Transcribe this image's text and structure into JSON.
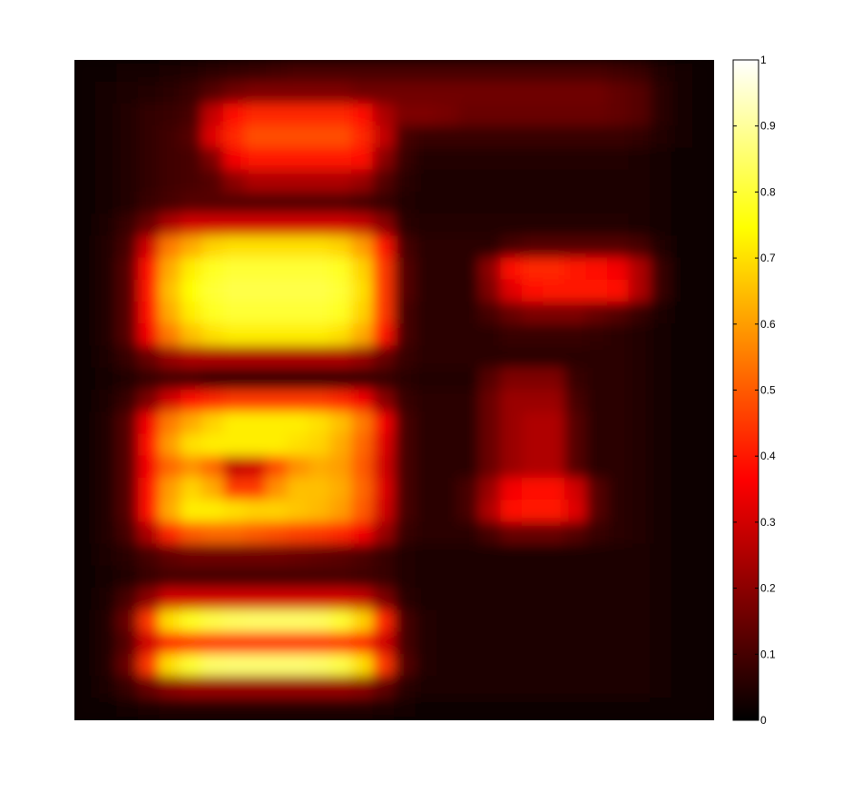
{
  "chart_data": {
    "type": "heatmap",
    "colormap": "hot",
    "clim": [
      0,
      1
    ],
    "grid": false,
    "title": "",
    "xlabel": "",
    "ylabel": "",
    "colorbar": {
      "placement": "right",
      "range": [
        0,
        1
      ],
      "ticks": [
        0,
        0.1,
        0.2,
        0.3,
        0.4,
        0.5,
        0.6,
        0.7,
        0.8,
        0.9,
        1
      ],
      "tick_labels": [
        "0",
        "0.1",
        "0.2",
        "0.3",
        "0.4",
        "0.5",
        "0.6",
        "0.7",
        "0.8",
        "0.9",
        "1"
      ]
    },
    "rows": 30,
    "cols": 30,
    "values": [
      [
        0.02,
        0.02,
        0.03,
        0.03,
        0.04,
        0.05,
        0.06,
        0.07,
        0.08,
        0.09,
        0.1,
        0.1,
        0.1,
        0.1,
        0.1,
        0.1,
        0.1,
        0.1,
        0.1,
        0.1,
        0.1,
        0.1,
        0.1,
        0.1,
        0.1,
        0.09,
        0.08,
        0.05,
        0.03,
        0.02
      ],
      [
        0.02,
        0.03,
        0.04,
        0.05,
        0.06,
        0.08,
        0.12,
        0.16,
        0.18,
        0.18,
        0.18,
        0.18,
        0.18,
        0.16,
        0.16,
        0.16,
        0.16,
        0.16,
        0.16,
        0.16,
        0.16,
        0.16,
        0.16,
        0.16,
        0.16,
        0.14,
        0.12,
        0.06,
        0.03,
        0.02
      ],
      [
        0.02,
        0.03,
        0.05,
        0.07,
        0.08,
        0.1,
        0.28,
        0.38,
        0.42,
        0.42,
        0.42,
        0.42,
        0.42,
        0.38,
        0.25,
        0.18,
        0.18,
        0.17,
        0.15,
        0.15,
        0.15,
        0.15,
        0.15,
        0.15,
        0.15,
        0.14,
        0.12,
        0.06,
        0.03,
        0.02
      ],
      [
        0.02,
        0.03,
        0.05,
        0.07,
        0.09,
        0.12,
        0.32,
        0.42,
        0.48,
        0.48,
        0.48,
        0.48,
        0.48,
        0.42,
        0.28,
        0.1,
        0.08,
        0.08,
        0.08,
        0.08,
        0.08,
        0.08,
        0.08,
        0.08,
        0.08,
        0.08,
        0.07,
        0.05,
        0.03,
        0.02
      ],
      [
        0.02,
        0.03,
        0.05,
        0.07,
        0.09,
        0.1,
        0.18,
        0.35,
        0.4,
        0.4,
        0.4,
        0.4,
        0.4,
        0.38,
        0.2,
        0.08,
        0.05,
        0.05,
        0.05,
        0.05,
        0.05,
        0.05,
        0.05,
        0.05,
        0.05,
        0.05,
        0.04,
        0.03,
        0.02,
        0.02
      ],
      [
        0.02,
        0.03,
        0.05,
        0.07,
        0.09,
        0.1,
        0.12,
        0.2,
        0.25,
        0.25,
        0.25,
        0.25,
        0.25,
        0.22,
        0.12,
        0.06,
        0.04,
        0.04,
        0.04,
        0.04,
        0.04,
        0.04,
        0.04,
        0.04,
        0.04,
        0.04,
        0.04,
        0.03,
        0.02,
        0.02
      ],
      [
        0.02,
        0.03,
        0.05,
        0.08,
        0.1,
        0.12,
        0.12,
        0.12,
        0.12,
        0.12,
        0.12,
        0.12,
        0.12,
        0.1,
        0.08,
        0.05,
        0.04,
        0.04,
        0.04,
        0.04,
        0.04,
        0.04,
        0.04,
        0.04,
        0.04,
        0.04,
        0.04,
        0.03,
        0.02,
        0.02
      ],
      [
        0.02,
        0.04,
        0.08,
        0.15,
        0.25,
        0.3,
        0.3,
        0.3,
        0.3,
        0.3,
        0.3,
        0.3,
        0.3,
        0.28,
        0.2,
        0.06,
        0.05,
        0.05,
        0.05,
        0.05,
        0.05,
        0.05,
        0.05,
        0.05,
        0.05,
        0.05,
        0.04,
        0.03,
        0.02,
        0.02
      ],
      [
        0.02,
        0.05,
        0.1,
        0.3,
        0.55,
        0.62,
        0.68,
        0.7,
        0.7,
        0.7,
        0.7,
        0.7,
        0.68,
        0.6,
        0.4,
        0.1,
        0.06,
        0.06,
        0.06,
        0.06,
        0.1,
        0.12,
        0.12,
        0.12,
        0.12,
        0.12,
        0.1,
        0.05,
        0.02,
        0.02
      ],
      [
        0.02,
        0.05,
        0.12,
        0.38,
        0.62,
        0.72,
        0.78,
        0.8,
        0.8,
        0.8,
        0.8,
        0.8,
        0.78,
        0.68,
        0.45,
        0.12,
        0.06,
        0.06,
        0.06,
        0.2,
        0.38,
        0.42,
        0.42,
        0.4,
        0.38,
        0.35,
        0.25,
        0.08,
        0.02,
        0.02
      ],
      [
        0.02,
        0.05,
        0.12,
        0.4,
        0.65,
        0.75,
        0.8,
        0.82,
        0.82,
        0.82,
        0.82,
        0.82,
        0.8,
        0.7,
        0.45,
        0.12,
        0.06,
        0.06,
        0.06,
        0.18,
        0.32,
        0.38,
        0.4,
        0.4,
        0.4,
        0.38,
        0.25,
        0.08,
        0.02,
        0.02
      ],
      [
        0.02,
        0.05,
        0.12,
        0.38,
        0.62,
        0.72,
        0.78,
        0.8,
        0.8,
        0.8,
        0.8,
        0.8,
        0.78,
        0.68,
        0.45,
        0.1,
        0.06,
        0.06,
        0.06,
        0.1,
        0.15,
        0.18,
        0.18,
        0.18,
        0.15,
        0.12,
        0.08,
        0.04,
        0.02,
        0.02
      ],
      [
        0.02,
        0.05,
        0.12,
        0.35,
        0.55,
        0.65,
        0.7,
        0.72,
        0.72,
        0.72,
        0.72,
        0.72,
        0.7,
        0.62,
        0.4,
        0.1,
        0.06,
        0.06,
        0.06,
        0.06,
        0.08,
        0.08,
        0.08,
        0.08,
        0.07,
        0.06,
        0.05,
        0.03,
        0.02,
        0.02
      ],
      [
        0.02,
        0.04,
        0.08,
        0.15,
        0.22,
        0.25,
        0.25,
        0.25,
        0.25,
        0.25,
        0.25,
        0.25,
        0.25,
        0.22,
        0.15,
        0.08,
        0.06,
        0.06,
        0.06,
        0.06,
        0.06,
        0.06,
        0.06,
        0.06,
        0.06,
        0.06,
        0.05,
        0.03,
        0.02,
        0.02
      ],
      [
        0.02,
        0.03,
        0.05,
        0.08,
        0.1,
        0.1,
        0.08,
        0.08,
        0.08,
        0.08,
        0.08,
        0.08,
        0.08,
        0.08,
        0.08,
        0.06,
        0.05,
        0.05,
        0.05,
        0.12,
        0.18,
        0.18,
        0.18,
        0.08,
        0.06,
        0.06,
        0.05,
        0.03,
        0.02,
        0.02
      ],
      [
        0.02,
        0.04,
        0.08,
        0.18,
        0.3,
        0.38,
        0.42,
        0.45,
        0.45,
        0.45,
        0.45,
        0.45,
        0.42,
        0.35,
        0.2,
        0.08,
        0.06,
        0.06,
        0.06,
        0.15,
        0.22,
        0.22,
        0.22,
        0.1,
        0.06,
        0.06,
        0.05,
        0.03,
        0.02,
        0.02
      ],
      [
        0.02,
        0.05,
        0.12,
        0.35,
        0.55,
        0.62,
        0.68,
        0.72,
        0.72,
        0.72,
        0.72,
        0.7,
        0.65,
        0.55,
        0.35,
        0.1,
        0.06,
        0.06,
        0.06,
        0.15,
        0.22,
        0.25,
        0.25,
        0.12,
        0.06,
        0.06,
        0.05,
        0.03,
        0.02,
        0.02
      ],
      [
        0.02,
        0.05,
        0.12,
        0.38,
        0.6,
        0.7,
        0.72,
        0.72,
        0.72,
        0.72,
        0.7,
        0.68,
        0.62,
        0.52,
        0.32,
        0.1,
        0.06,
        0.06,
        0.06,
        0.15,
        0.22,
        0.25,
        0.25,
        0.12,
        0.06,
        0.06,
        0.05,
        0.03,
        0.02,
        0.02
      ],
      [
        0.02,
        0.05,
        0.12,
        0.35,
        0.52,
        0.58,
        0.52,
        0.28,
        0.3,
        0.48,
        0.58,
        0.62,
        0.6,
        0.5,
        0.3,
        0.1,
        0.06,
        0.06,
        0.06,
        0.15,
        0.22,
        0.25,
        0.25,
        0.12,
        0.06,
        0.06,
        0.05,
        0.03,
        0.02,
        0.02
      ],
      [
        0.02,
        0.05,
        0.12,
        0.38,
        0.6,
        0.68,
        0.62,
        0.45,
        0.45,
        0.58,
        0.65,
        0.65,
        0.62,
        0.52,
        0.32,
        0.1,
        0.06,
        0.06,
        0.1,
        0.22,
        0.35,
        0.38,
        0.38,
        0.3,
        0.12,
        0.06,
        0.05,
        0.03,
        0.02,
        0.02
      ],
      [
        0.02,
        0.05,
        0.12,
        0.38,
        0.62,
        0.72,
        0.72,
        0.7,
        0.68,
        0.68,
        0.66,
        0.64,
        0.6,
        0.5,
        0.3,
        0.1,
        0.06,
        0.06,
        0.1,
        0.25,
        0.38,
        0.4,
        0.4,
        0.32,
        0.12,
        0.06,
        0.05,
        0.03,
        0.02,
        0.02
      ],
      [
        0.02,
        0.05,
        0.1,
        0.25,
        0.42,
        0.5,
        0.52,
        0.52,
        0.5,
        0.48,
        0.46,
        0.45,
        0.42,
        0.35,
        0.22,
        0.08,
        0.06,
        0.06,
        0.06,
        0.1,
        0.15,
        0.15,
        0.15,
        0.12,
        0.08,
        0.06,
        0.05,
        0.03,
        0.02,
        0.02
      ],
      [
        0.02,
        0.04,
        0.06,
        0.1,
        0.14,
        0.16,
        0.16,
        0.16,
        0.16,
        0.16,
        0.15,
        0.14,
        0.13,
        0.11,
        0.08,
        0.05,
        0.04,
        0.04,
        0.04,
        0.04,
        0.04,
        0.04,
        0.04,
        0.04,
        0.04,
        0.04,
        0.04,
        0.03,
        0.02,
        0.02
      ],
      [
        0.02,
        0.03,
        0.05,
        0.08,
        0.1,
        0.1,
        0.1,
        0.1,
        0.1,
        0.1,
        0.1,
        0.1,
        0.1,
        0.09,
        0.08,
        0.05,
        0.04,
        0.04,
        0.04,
        0.04,
        0.04,
        0.04,
        0.04,
        0.04,
        0.04,
        0.04,
        0.04,
        0.03,
        0.02,
        0.02
      ],
      [
        0.02,
        0.04,
        0.1,
        0.2,
        0.3,
        0.3,
        0.3,
        0.3,
        0.3,
        0.3,
        0.3,
        0.3,
        0.3,
        0.28,
        0.18,
        0.06,
        0.04,
        0.04,
        0.04,
        0.04,
        0.04,
        0.04,
        0.04,
        0.04,
        0.04,
        0.04,
        0.04,
        0.03,
        0.02,
        0.02
      ],
      [
        0.02,
        0.05,
        0.15,
        0.45,
        0.7,
        0.78,
        0.82,
        0.84,
        0.85,
        0.85,
        0.85,
        0.84,
        0.8,
        0.68,
        0.42,
        0.1,
        0.05,
        0.04,
        0.04,
        0.04,
        0.04,
        0.04,
        0.04,
        0.04,
        0.04,
        0.04,
        0.04,
        0.03,
        0.02,
        0.02
      ],
      [
        0.02,
        0.05,
        0.12,
        0.3,
        0.42,
        0.45,
        0.45,
        0.45,
        0.45,
        0.45,
        0.45,
        0.45,
        0.45,
        0.42,
        0.3,
        0.1,
        0.05,
        0.04,
        0.04,
        0.04,
        0.04,
        0.04,
        0.04,
        0.04,
        0.04,
        0.04,
        0.04,
        0.03,
        0.02,
        0.02
      ],
      [
        0.02,
        0.05,
        0.15,
        0.45,
        0.7,
        0.8,
        0.85,
        0.86,
        0.86,
        0.86,
        0.86,
        0.85,
        0.82,
        0.7,
        0.45,
        0.12,
        0.05,
        0.04,
        0.04,
        0.04,
        0.04,
        0.04,
        0.04,
        0.04,
        0.04,
        0.04,
        0.04,
        0.03,
        0.02,
        0.02
      ],
      [
        0.02,
        0.04,
        0.08,
        0.15,
        0.2,
        0.22,
        0.22,
        0.22,
        0.22,
        0.22,
        0.22,
        0.22,
        0.22,
        0.2,
        0.14,
        0.06,
        0.04,
        0.04,
        0.04,
        0.04,
        0.04,
        0.04,
        0.04,
        0.04,
        0.04,
        0.04,
        0.04,
        0.03,
        0.02,
        0.02
      ],
      [
        0.02,
        0.02,
        0.03,
        0.04,
        0.05,
        0.05,
        0.05,
        0.05,
        0.05,
        0.05,
        0.05,
        0.05,
        0.05,
        0.05,
        0.04,
        0.03,
        0.02,
        0.02,
        0.02,
        0.02,
        0.02,
        0.02,
        0.02,
        0.02,
        0.02,
        0.02,
        0.02,
        0.02,
        0.02,
        0.02
      ]
    ]
  }
}
